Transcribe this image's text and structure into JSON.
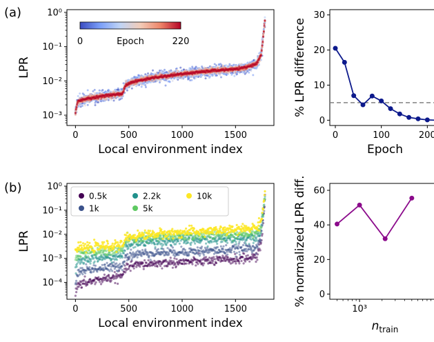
{
  "figure": {
    "panel_labels": [
      "(a)",
      "(b)"
    ]
  },
  "chart_data": [
    {
      "id": "a-left",
      "type": "scatter",
      "title": "",
      "xlabel": "Local environment index",
      "ylabel": "LPR",
      "xlim": [
        -80,
        1860
      ],
      "ylim": [
        0.0005,
        1.2
      ],
      "yscale": "log",
      "xticks": [
        0,
        500,
        1000,
        1500
      ],
      "xtick_labels": [
        "0",
        "500",
        "1000",
        "1500"
      ],
      "yticks": [
        0.001,
        0.01,
        0.1,
        1
      ],
      "ytick_labels": [
        "10⁻³",
        "10⁻²",
        "10⁻¹",
        "10⁰"
      ],
      "colorbar": {
        "label": "Epoch",
        "min_label": "0",
        "max_label": "220",
        "range": [
          0,
          220
        ],
        "colormap": [
          "#3b4cc0",
          "#7b9ff9",
          "#c0d4f5",
          "#f2cbb7",
          "#ee8468",
          "#b40426"
        ]
      },
      "series_profile": {
        "x": [
          0,
          20,
          100,
          300,
          440,
          470,
          520,
          700,
          1000,
          1300,
          1500,
          1600,
          1700,
          1740,
          1760,
          1780
        ],
        "y": [
          0.0012,
          0.0025,
          0.003,
          0.0038,
          0.0042,
          0.0075,
          0.009,
          0.012,
          0.016,
          0.02,
          0.022,
          0.025,
          0.032,
          0.06,
          0.2,
          0.8
        ]
      },
      "n_points": 1780,
      "grid": false
    },
    {
      "id": "a-right",
      "type": "line",
      "title": "",
      "xlabel": "Epoch",
      "ylabel": "% LPR difference",
      "xlim": [
        -12,
        228
      ],
      "ylim": [
        -1.5,
        31.5
      ],
      "xticks": [
        0,
        100,
        200
      ],
      "xtick_labels": [
        "0",
        "100",
        "200"
      ],
      "yticks": [
        0,
        10,
        20,
        30
      ],
      "ytick_labels": [
        "0",
        "10",
        "20",
        "30"
      ],
      "color": "#0d1a8c",
      "x": [
        0,
        20,
        40,
        60,
        80,
        100,
        120,
        140,
        160,
        180,
        200,
        220
      ],
      "y": [
        20.5,
        16.5,
        7.0,
        4.4,
        6.9,
        5.5,
        3.3,
        1.8,
        0.8,
        0.4,
        0.1,
        0.0
      ],
      "reference_line": {
        "y": 5,
        "style": "dashed",
        "color": "#808080"
      },
      "grid": false
    },
    {
      "id": "b-left",
      "type": "scatter",
      "title": "",
      "xlabel": "Local environment index",
      "ylabel": "LPR",
      "xlim": [
        -80,
        1860
      ],
      "ylim": [
        2e-05,
        1.3
      ],
      "yscale": "log",
      "xticks": [
        0,
        500,
        1000,
        1500
      ],
      "xtick_labels": [
        "0",
        "500",
        "1000",
        "1500"
      ],
      "yticks": [
        0.0001,
        0.001,
        0.01,
        0.1,
        1
      ],
      "ytick_labels": [
        "10⁻⁴",
        "10⁻³",
        "10⁻²",
        "10⁻¹",
        "10⁰"
      ],
      "legend_position": "top-left",
      "series": [
        {
          "name": "0.5k",
          "color": "#440154",
          "profile_y": [
            4e-05,
            7e-05,
            0.0001,
            0.00015,
            0.00018,
            0.0004,
            0.0005,
            0.0006,
            0.0007,
            0.0008,
            0.0009,
            0.001,
            0.0012,
            0.004,
            0.04,
            0.5
          ]
        },
        {
          "name": "1k",
          "color": "#3b528b",
          "profile_y": [
            0.0001,
            0.00025,
            0.00035,
            0.0004,
            0.0005,
            0.0012,
            0.0014,
            0.0017,
            0.0019,
            0.0021,
            0.0023,
            0.0026,
            0.003,
            0.008,
            0.05,
            0.5
          ]
        },
        {
          "name": "2.2k",
          "color": "#21918c",
          "profile_y": [
            0.0003,
            0.0007,
            0.0009,
            0.0011,
            0.0012,
            0.0035,
            0.004,
            0.0048,
            0.0055,
            0.006,
            0.0065,
            0.007,
            0.008,
            0.015,
            0.08,
            0.6
          ]
        },
        {
          "name": "5k",
          "color": "#5ec962",
          "profile_y": [
            0.0008,
            0.0015,
            0.0017,
            0.002,
            0.0022,
            0.0055,
            0.006,
            0.007,
            0.0085,
            0.0095,
            0.01,
            0.011,
            0.012,
            0.02,
            0.1,
            0.6
          ]
        },
        {
          "name": "10k",
          "color": "#fde725",
          "profile_y": [
            0.002,
            0.0026,
            0.0028,
            0.0032,
            0.0035,
            0.007,
            0.008,
            0.01,
            0.012,
            0.014,
            0.015,
            0.017,
            0.02,
            0.035,
            0.15,
            0.8
          ]
        }
      ],
      "profile_x": [
        0,
        20,
        100,
        300,
        440,
        470,
        520,
        700,
        1000,
        1300,
        1500,
        1600,
        1700,
        1740,
        1760,
        1780
      ],
      "n_points": 1780,
      "grid": false
    },
    {
      "id": "b-right",
      "type": "line",
      "title": "",
      "xlabel": "n",
      "xlabel_sub": "train",
      "ylabel": "% normalized LPR diff.",
      "xscale": "log",
      "xlim": [
        400,
        12000
      ],
      "ylim": [
        -3,
        64
      ],
      "xticks": [
        1000
      ],
      "xtick_labels": [
        "10³"
      ],
      "yticks": [
        0,
        20,
        40,
        60
      ],
      "ytick_labels": [
        "0",
        "20",
        "40",
        "60"
      ],
      "color": "#8b0a8b",
      "x": [
        500,
        1000,
        2200,
        5000
      ],
      "y": [
        40.5,
        51.5,
        32.0,
        55.5
      ],
      "grid": false
    }
  ]
}
